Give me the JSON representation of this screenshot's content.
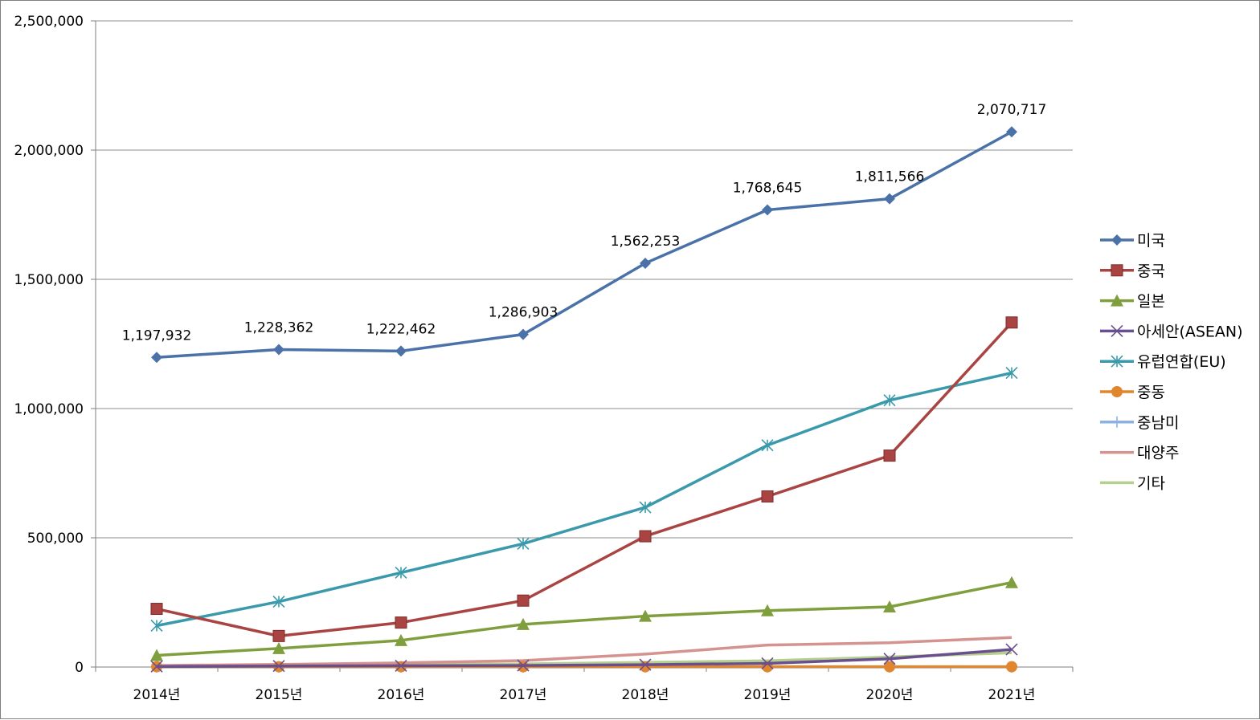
{
  "chart_data": {
    "type": "line",
    "title": "",
    "xlabel": "",
    "ylabel": "",
    "categories": [
      "2014년",
      "2015년",
      "2016년",
      "2017년",
      "2018년",
      "2019년",
      "2020년",
      "2021년"
    ],
    "ylim": [
      0,
      2500000
    ],
    "y_ticks": [
      "0",
      "500,000",
      "1,000,000",
      "1,500,000",
      "2,000,000",
      "2,500,000"
    ],
    "y_tick_values": [
      0,
      500000,
      1000000,
      1500000,
      2000000,
      2500000
    ],
    "grid": "horizontal",
    "legend_position": "right",
    "series": [
      {
        "name": "미국",
        "color": "#4a72a8",
        "marker": "diamond",
        "values": [
          1197932,
          1228362,
          1222462,
          1286903,
          1562253,
          1768645,
          1811566,
          2070717
        ],
        "labels": [
          "1,197,932",
          "1,228,362",
          "1,222,462",
          "1,286,903",
          "1,562,253",
          "1,768,645",
          "1,811,566",
          "2,070,717"
        ]
      },
      {
        "name": "중국",
        "color": "#a94442",
        "marker": "square",
        "values": [
          225000,
          120000,
          172000,
          257000,
          506000,
          660000,
          818000,
          1333000
        ]
      },
      {
        "name": "일본",
        "color": "#7f9f3f",
        "marker": "triangle",
        "values": [
          45000,
          72000,
          103000,
          165000,
          197000,
          218000,
          233000,
          327000
        ]
      },
      {
        "name": "아세안(ASEAN)",
        "color": "#6a4f8e",
        "marker": "x",
        "values": [
          2000,
          4000,
          5000,
          6000,
          9000,
          14000,
          32000,
          68000
        ]
      },
      {
        "name": "유럽연합(EU)",
        "color": "#3a9aab",
        "marker": "star",
        "values": [
          160000,
          253000,
          365000,
          477000,
          618000,
          858000,
          1032000,
          1138000
        ]
      },
      {
        "name": "중동",
        "color": "#e0862f",
        "marker": "circle",
        "values": [
          1000,
          1000,
          1000,
          1000,
          1000,
          1000,
          1000,
          1000
        ]
      },
      {
        "name": "중남미",
        "color": "#8db2e0",
        "marker": "plus",
        "values": [
          500,
          500,
          500,
          500,
          500,
          500,
          500,
          500
        ]
      },
      {
        "name": "대양주",
        "color": "#d59390",
        "marker": "none",
        "values": [
          6000,
          10000,
          16000,
          25000,
          50000,
          85000,
          94000,
          114000
        ]
      },
      {
        "name": "기타",
        "color": "#b5cf8e",
        "marker": "none",
        "values": [
          4000,
          7000,
          10000,
          12000,
          18000,
          24000,
          39000,
          55000
        ]
      }
    ]
  }
}
